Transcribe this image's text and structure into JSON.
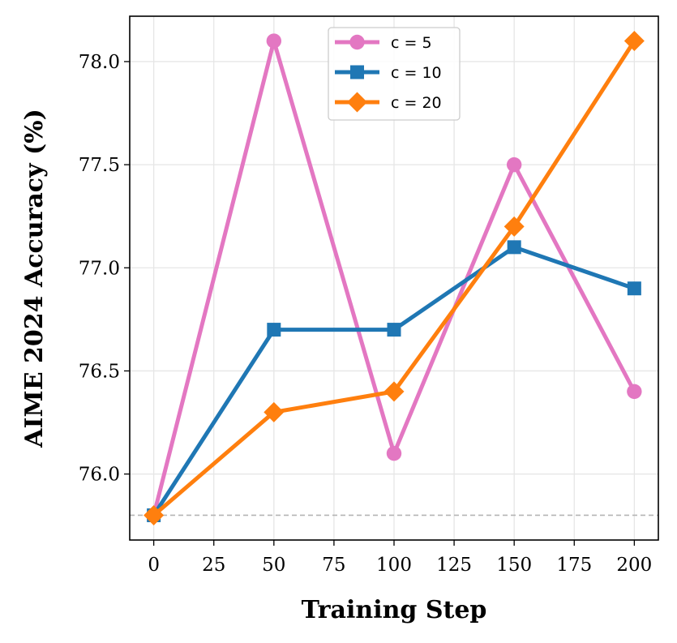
{
  "chart_data": {
    "type": "line",
    "xlabel": "Training Step",
    "ylabel": "AIME 2024 Accuracy (%)",
    "x": [
      0,
      50,
      100,
      150,
      200
    ],
    "xlim": [
      -10,
      210
    ],
    "ylim": [
      75.68,
      78.22
    ],
    "xticks": [
      0,
      25,
      50,
      75,
      100,
      125,
      150,
      175,
      200
    ],
    "yticks": [
      76.0,
      76.5,
      77.0,
      77.5,
      78.0
    ],
    "xtick_labels": [
      "0",
      "25",
      "50",
      "75",
      "100",
      "125",
      "150",
      "175",
      "200"
    ],
    "ytick_labels": [
      "76.0",
      "76.5",
      "77.0",
      "77.5",
      "78.0"
    ],
    "grid": true,
    "baseline": 75.8,
    "legend_position": "top-center",
    "series": [
      {
        "name": "c = 5",
        "color": "#e377c2",
        "marker": "circle",
        "values": [
          75.8,
          78.1,
          76.1,
          77.5,
          76.4
        ]
      },
      {
        "name": "c = 10",
        "color": "#1f77b4",
        "marker": "square",
        "values": [
          75.8,
          76.7,
          76.7,
          77.1,
          76.9
        ]
      },
      {
        "name": "c = 20",
        "color": "#ff7f0e",
        "marker": "diamond",
        "values": [
          75.8,
          76.3,
          76.4,
          77.2,
          78.1
        ]
      }
    ]
  }
}
